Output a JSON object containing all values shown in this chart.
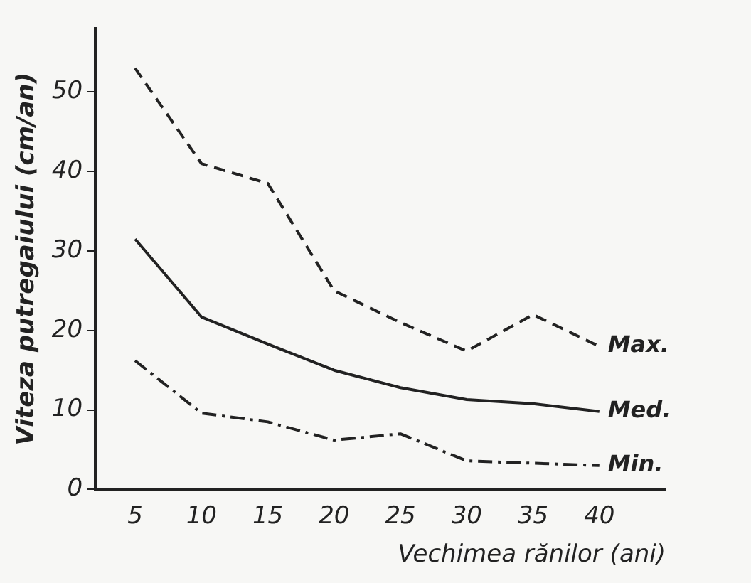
{
  "chart_data": {
    "type": "line",
    "xlabel": "Vechimea rănilor (ani)",
    "ylabel": "Viteza putregaiului (cm/an)",
    "x": [
      5,
      10,
      15,
      20,
      25,
      30,
      35,
      40
    ],
    "xlim": [
      2,
      45
    ],
    "xticks": [
      5,
      10,
      15,
      20,
      25,
      30,
      35,
      40
    ],
    "ylim": [
      0,
      58
    ],
    "yticks": [
      0,
      10,
      20,
      30,
      40,
      50
    ],
    "grid": false,
    "legend": false,
    "marker": "none",
    "series": [
      {
        "name": "Max.",
        "color": "#222222",
        "line_style": "dashed",
        "values": [
          53,
          41,
          38.5,
          25,
          21,
          17.4,
          22,
          18
        ]
      },
      {
        "name": "Med.",
        "color": "#222222",
        "line_style": "solid",
        "values": [
          31.5,
          21.7,
          18.3,
          15,
          12.8,
          11.3,
          10.8,
          9.8
        ]
      },
      {
        "name": "Min.",
        "color": "#222222",
        "line_style": "dotted",
        "values": [
          16.2,
          9.6,
          8.5,
          6.2,
          7,
          3.6,
          3.3,
          3
        ]
      }
    ]
  }
}
